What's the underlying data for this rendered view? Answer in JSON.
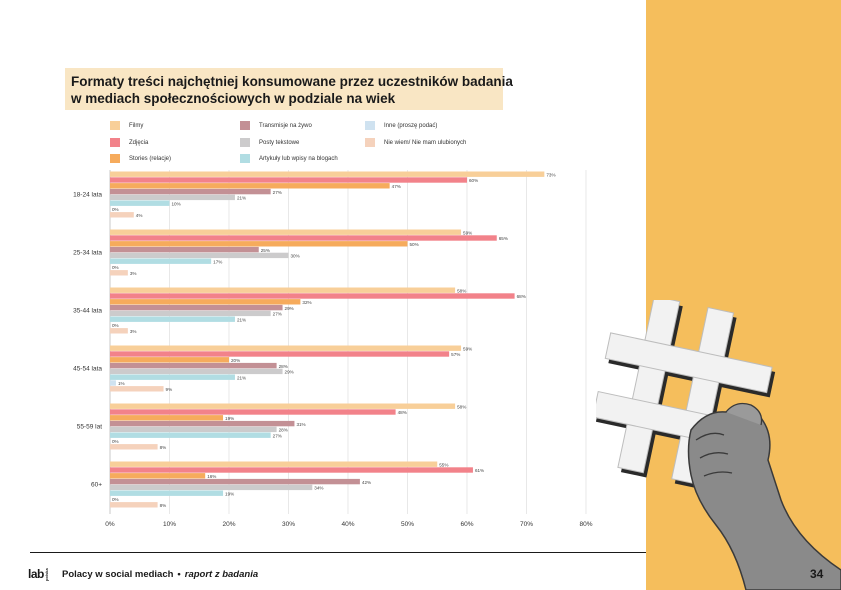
{
  "title": {
    "line1": "Formaty treści najchętniej konsumowane przez uczestników badania",
    "line2": "w mediach społecznościowych w podziale na wiek"
  },
  "footer": {
    "logo_main": "lab",
    "logo_side": "polska",
    "title": "Polacy w social mediach",
    "separator": "•",
    "subtitle": "raport z badania",
    "page_number": "34"
  },
  "colors": {
    "sidebar": "#f5be5c",
    "title_bg": "#f9e6c4"
  },
  "illustration": {
    "icon": "hashtag-hand-icon"
  },
  "chart_data": {
    "type": "bar",
    "orientation": "horizontal",
    "title": "Formaty treści najchętniej konsumowane przez uczestników badania w mediach społecznościowych w podziale na wiek",
    "categories": [
      "18-24 lata",
      "25-34 lata",
      "35-44 lata",
      "45-54 lata",
      "55-59 lat",
      "60+"
    ],
    "xlim": [
      0,
      80
    ],
    "xticks": [
      "0%",
      "10%",
      "20%",
      "30%",
      "40%",
      "50%",
      "60%",
      "70%",
      "80%"
    ],
    "grid": true,
    "legend_position": "top",
    "series": [
      {
        "name": "Filmy",
        "color": "#f8cf99",
        "values": [
          73,
          59,
          58,
          59,
          58,
          55
        ]
      },
      {
        "name": "Zdjęcia",
        "color": "#f2828a",
        "values": [
          60,
          65,
          68,
          57,
          48,
          61
        ]
      },
      {
        "name": "Stories (relacje)",
        "color": "#f6ab5c",
        "values": [
          47,
          50,
          32,
          20,
          19,
          16
        ]
      },
      {
        "name": "Transmisje na żywo",
        "color": "#c39095",
        "values": [
          27,
          25,
          29,
          28,
          31,
          42
        ]
      },
      {
        "name": "Posty tekstowe",
        "color": "#cccbcc",
        "values": [
          21,
          30,
          27,
          29,
          28,
          34
        ]
      },
      {
        "name": "Artykuły lub wpisy na blogach",
        "color": "#b1dde3",
        "values": [
          10,
          17,
          21,
          21,
          27,
          19
        ]
      },
      {
        "name": "Inne (proszę podać)",
        "color": "#cfe2f0",
        "values": [
          0,
          0,
          0,
          1,
          0,
          0
        ]
      },
      {
        "name": "Nie wiem/ Nie mam ulubionych",
        "color": "#f5d2bc",
        "values": [
          4,
          3,
          3,
          9,
          8,
          8
        ]
      }
    ]
  }
}
